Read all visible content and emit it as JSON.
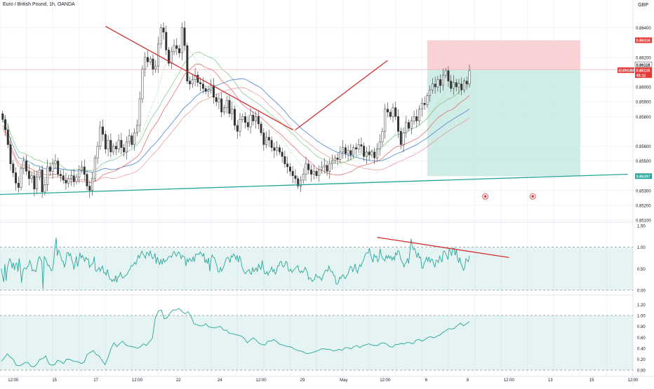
{
  "header": {
    "symbol_title": "Euro / British Pound, 1h, OANDA",
    "currency": "GBP"
  },
  "chart_data": [
    {
      "type": "candlestick",
      "panel": "price",
      "ylim": [
        0.851,
        0.8655
      ],
      "y_ticks": [
        "0.86400",
        "0.86200",
        "0.86000",
        "0.85900",
        "0.85800",
        "0.85600",
        "0.85500",
        "0.85300",
        "0.85200",
        "0.85100"
      ],
      "price_labels": [
        {
          "text": "0.86316",
          "kind": "stop"
        },
        {
          "text": "0.86118",
          "kind": "entry"
        },
        {
          "text": "EURGBP",
          "kind": "symbol"
        },
        {
          "text": "0.86115",
          "kind": "last"
        },
        {
          "text": "45:11",
          "kind": "countdown"
        },
        {
          "text": "0.85397",
          "kind": "target"
        }
      ],
      "candle_colors": {
        "up": "#ffffff",
        "down": "#333333",
        "outline": "#333333"
      },
      "position_tool": {
        "direction": "short",
        "entry": 0.86118,
        "stop": 0.86316,
        "target": 0.85397,
        "loss_color": "#f8c7cc",
        "profit_color": "#cbeae3",
        "start_x": 16.2,
        "end_x": 22.0
      },
      "trendlines": [
        {
          "color": "#d32f2f",
          "x1": 4.0,
          "y1": 0.8641,
          "x2": 11.1,
          "y2": 0.8571
        },
        {
          "color": "#d32f2f",
          "x1": 11.2,
          "y1": 0.8571,
          "x2": 14.7,
          "y2": 0.8618
        },
        {
          "color": "#26a69a",
          "x1": -0.5,
          "y1": 0.8527,
          "x2": 23.8,
          "y2": 0.8541
        }
      ],
      "closes": [
        0.8578,
        0.8571,
        0.8561,
        0.8548,
        0.8542,
        0.8535,
        0.8532,
        0.8545,
        0.855,
        0.8543,
        0.8538,
        0.854,
        0.8531,
        0.8539,
        0.8544,
        0.8529,
        0.8534,
        0.8546,
        0.8543,
        0.8548,
        0.855,
        0.8541,
        0.854,
        0.8537,
        0.8535,
        0.8538,
        0.854,
        0.8536,
        0.8539,
        0.8544,
        0.8546,
        0.8541,
        0.8533,
        0.853,
        0.8538,
        0.8552,
        0.856,
        0.8573,
        0.8568,
        0.8558,
        0.8564,
        0.8556,
        0.856,
        0.8558,
        0.8564,
        0.8559,
        0.8556,
        0.8563,
        0.8567,
        0.8561,
        0.8569,
        0.8574,
        0.8592,
        0.8612,
        0.862,
        0.8617,
        0.8619,
        0.8612,
        0.8614,
        0.8629,
        0.864,
        0.8637,
        0.8625,
        0.8616,
        0.8624,
        0.8628,
        0.8626,
        0.8623,
        0.864,
        0.8628,
        0.8604,
        0.8602,
        0.8605,
        0.8608,
        0.8603,
        0.8602,
        0.8599,
        0.8597,
        0.8598,
        0.8601,
        0.8593,
        0.859,
        0.8592,
        0.8583,
        0.8586,
        0.8591,
        0.8582,
        0.8585,
        0.8574,
        0.857,
        0.8578,
        0.858,
        0.8576,
        0.8573,
        0.8581,
        0.8577,
        0.858,
        0.8575,
        0.8569,
        0.8561,
        0.8566,
        0.8564,
        0.8559,
        0.8557,
        0.8559,
        0.8556,
        0.8553,
        0.8548,
        0.8546,
        0.8543,
        0.854,
        0.8538,
        0.8533,
        0.8537,
        0.8541,
        0.8548,
        0.8544,
        0.8541,
        0.8543,
        0.854,
        0.8544,
        0.8546,
        0.8547,
        0.8543,
        0.8548,
        0.855,
        0.8552,
        0.8551,
        0.8556,
        0.8559,
        0.8555,
        0.8557,
        0.8554,
        0.8559,
        0.8558,
        0.8561,
        0.856,
        0.8553,
        0.8556,
        0.8554,
        0.8556,
        0.8552,
        0.8558,
        0.8563,
        0.857,
        0.8585,
        0.8583,
        0.858,
        0.8586,
        0.858,
        0.857,
        0.8561,
        0.8569,
        0.8576,
        0.8572,
        0.8577,
        0.858,
        0.8577,
        0.8585,
        0.8589,
        0.8588,
        0.8594,
        0.8598,
        0.8602,
        0.86,
        0.8605,
        0.8601,
        0.8608,
        0.8611,
        0.8604,
        0.8599,
        0.8603,
        0.86,
        0.8602,
        0.8598,
        0.8604,
        0.8602,
        0.8611
      ]
    },
    {
      "type": "line",
      "panel": "oscillator_1",
      "ylim": [
        -0.05,
        1.55
      ],
      "y_ticks": [
        "1.50",
        "1.00",
        "0.50",
        "0.00"
      ],
      "band": [
        0.0,
        1.0
      ],
      "color": "#26a69a",
      "values": [
        0.5,
        0.33,
        0.19,
        0.61,
        0.22,
        0.51,
        0.63,
        0.73,
        0.68,
        0.51,
        0.64,
        0.47,
        0.61,
        0.63,
        0.43,
        0.74,
        0.52,
        0.17,
        0.43,
        0.51,
        0.51,
        0.49,
        0.55,
        0.58,
        0.69,
        0.59,
        0.45,
        0.47,
        0.45,
        0.43,
        0.56,
        0.72,
        0.78,
        0.72,
        0.66,
        0.03,
        0.78,
        0.74,
        0.67,
        0.57,
        0.58,
        0.52,
        0.45,
        0.48,
        0.68,
        0.99,
        1.22,
        0.8,
        0.93,
        0.88,
        0.78,
        0.68,
        0.67,
        0.54,
        0.63,
        0.86,
        0.88,
        0.8,
        0.85,
        0.72,
        0.64,
        0.48,
        0.64,
        0.79,
        0.55,
        0.68,
        0.87,
        0.75,
        0.81,
        0.74,
        0.67,
        0.76,
        0.72,
        0.73,
        0.53,
        0.58,
        0.6,
        0.63,
        0.78,
        0.46,
        0.44,
        0.48,
        0.53,
        0.44,
        0.52,
        0.56,
        0.4,
        0.41,
        0.35,
        0.48,
        0.36,
        0.26,
        0.25,
        0.2,
        0.25,
        0.21,
        0.34,
        0.18,
        0.31,
        0.32,
        0.41,
        0.33,
        0.28,
        0.3,
        0.34,
        0.35,
        0.39,
        0.45,
        0.49,
        0.57,
        0.56,
        0.6,
        0.65,
        0.6,
        0.71,
        0.81,
        0.75,
        0.84,
        0.91,
        0.84,
        0.8,
        0.74,
        0.88,
        0.87,
        0.8,
        0.92,
        0.8,
        0.73,
        0.76,
        0.86,
        0.62,
        0.77,
        0.67,
        0.6,
        0.72,
        0.6,
        0.74,
        0.65,
        0.69,
        0.69,
        0.76,
        0.79,
        0.79,
        0.76,
        0.86,
        0.9,
        0.84,
        0.79,
        0.86,
        0.89,
        0.85,
        0.73,
        0.81,
        0.79,
        0.77,
        0.56,
        0.72,
        0.66,
        0.74,
        0.7,
        0.67,
        0.77,
        0.66,
        0.83,
        0.84,
        0.84,
        0.83,
        0.89,
        0.84,
        0.79,
        0.86,
        0.64,
        0.71,
        0.62,
        0.75,
        0.44,
        0.71,
        0.82,
        0.77,
        0.75,
        0.65,
        0.56,
        0.43,
        0.42,
        0.53,
        0.44,
        0.5,
        0.57,
        0.67,
        0.74,
        0.77,
        0.73,
        0.64,
        0.8,
        0.77,
        0.84,
        0.8,
        0.71,
        0.81,
        0.65,
        0.79,
        0.72,
        0.55,
        0.47,
        0.41,
        0.38,
        0.43,
        0.46,
        0.48,
        0.39,
        0.37,
        0.53,
        0.43,
        0.47,
        0.52,
        0.43,
        0.6,
        0.53,
        0.48,
        0.69,
        0.53,
        0.39,
        0.38,
        0.43,
        0.35,
        0.43,
        0.45,
        0.54,
        0.43,
        0.48,
        0.37,
        0.43,
        0.57,
        0.56,
        0.66,
        0.67,
        0.56,
        0.54,
        0.59,
        0.67,
        0.63,
        0.45,
        0.44,
        0.49,
        0.41,
        0.46,
        0.48,
        0.52,
        0.55,
        0.57,
        0.44,
        0.41,
        0.45,
        0.41,
        0.45,
        0.53,
        0.48,
        0.41,
        0.25,
        0.29,
        0.27,
        0.2,
        0.23,
        0.25,
        0.37,
        0.33,
        0.29,
        0.31,
        0.28,
        0.23,
        0.33,
        0.39,
        0.46,
        0.47,
        0.44,
        0.56,
        0.47,
        0.43,
        0.43,
        0.34,
        0.33,
        0.15,
        0.14,
        0.18,
        0.3,
        0.27,
        0.34,
        0.36,
        0.29,
        0.27,
        0.34,
        0.37,
        0.47,
        0.55,
        0.54,
        0.43,
        0.5,
        0.61,
        0.48,
        0.4,
        0.51,
        0.59,
        0.55,
        0.64,
        0.69,
        0.79,
        0.86,
        0.87,
        0.86,
        0.98,
        0.83,
        0.73,
        0.65,
        0.83,
        0.77,
        0.79,
        0.66,
        0.72,
        0.96,
        0.82,
        0.73,
        0.72,
        0.68,
        0.8,
        0.74,
        0.81,
        0.74,
        0.79,
        0.7,
        0.77,
        0.7,
        0.87,
        0.82,
        0.92,
        0.9,
        0.77,
        0.67,
        0.64,
        0.54,
        0.62,
        0.64,
        0.74,
        0.62,
        0.89,
        1.2,
        1.01,
        0.95,
        0.97,
        0.87,
        0.76,
        0.87,
        0.75,
        0.77,
        0.52,
        0.51,
        0.63,
        0.68,
        0.77,
        0.67,
        0.77,
        0.65,
        0.72,
        0.71,
        0.6,
        0.54,
        0.7,
        0.69,
        0.64,
        0.79,
        0.72,
        0.65,
        0.89,
        0.91,
        0.86,
        0.79,
        0.71,
        0.95,
        0.91,
        0.8,
        0.97,
        0.98,
        0.81,
        0.94,
        0.74,
        0.64,
        0.76,
        0.6,
        0.55,
        0.46,
        0.52,
        0.73,
        0.7,
        0.66,
        0.8
      ]
    },
    {
      "type": "line",
      "panel": "oscillator_2",
      "ylim": [
        -0.05,
        1.27
      ],
      "y_ticks": [
        "1.20",
        "1.00",
        "0.80",
        "0.60",
        "0.40",
        "0.20",
        "0.00"
      ],
      "band": [
        0.0,
        1.0
      ],
      "color": "#26a69a",
      "values": [
        0.16,
        0.22,
        0.3,
        0.24,
        0.2,
        0.09,
        0.08,
        0.1,
        0.14,
        0.14,
        0.07,
        0.06,
        0.11,
        0.2,
        0.21,
        0.26,
        0.12,
        0.09,
        0.1,
        0.18,
        0.16,
        0.12,
        0.2,
        0.2,
        0.17,
        0.16,
        0.15,
        0.12,
        0.15,
        0.29,
        0.32,
        0.36,
        0.29,
        0.26,
        0.18,
        0.1,
        0.23,
        0.39,
        0.5,
        0.43,
        0.49,
        0.53,
        0.46,
        0.44,
        0.43,
        0.42,
        0.4,
        0.43,
        0.48,
        0.45,
        0.52,
        0.59,
        0.96,
        1.08,
        1.1,
        0.94,
        0.96,
        1.05,
        1.1,
        1.1,
        1.13,
        1.07,
        1.03,
        1.07,
        0.99,
        0.85,
        0.83,
        0.81,
        0.81,
        0.85,
        0.79,
        0.78,
        0.77,
        0.79,
        0.8,
        0.73,
        0.73,
        0.67,
        0.67,
        0.65,
        0.64,
        0.62,
        0.58,
        0.5,
        0.55,
        0.59,
        0.55,
        0.49,
        0.47,
        0.46,
        0.53,
        0.53,
        0.56,
        0.52,
        0.47,
        0.46,
        0.44,
        0.43,
        0.42,
        0.38,
        0.36,
        0.35,
        0.33,
        0.3,
        0.31,
        0.32,
        0.34,
        0.36,
        0.39,
        0.39,
        0.38,
        0.38,
        0.35,
        0.36,
        0.38,
        0.36,
        0.41,
        0.41,
        0.39,
        0.43,
        0.45,
        0.41,
        0.45,
        0.46,
        0.48,
        0.46,
        0.45,
        0.45,
        0.49,
        0.5,
        0.48,
        0.43,
        0.42,
        0.47,
        0.47,
        0.49,
        0.48,
        0.51,
        0.5,
        0.48,
        0.55,
        0.56,
        0.53,
        0.56,
        0.6,
        0.61,
        0.59,
        0.62,
        0.64,
        0.69,
        0.72,
        0.76,
        0.75,
        0.77,
        0.82,
        0.86,
        0.81,
        0.85,
        0.89
      ]
    }
  ],
  "time_axis": {
    "labels": [
      "12:00",
      "15",
      "17",
      "12:00",
      "22",
      "24",
      "12:00",
      "29",
      "May",
      "12:00",
      "6",
      "8",
      "12:00",
      "13",
      "15",
      "12:00"
    ]
  }
}
